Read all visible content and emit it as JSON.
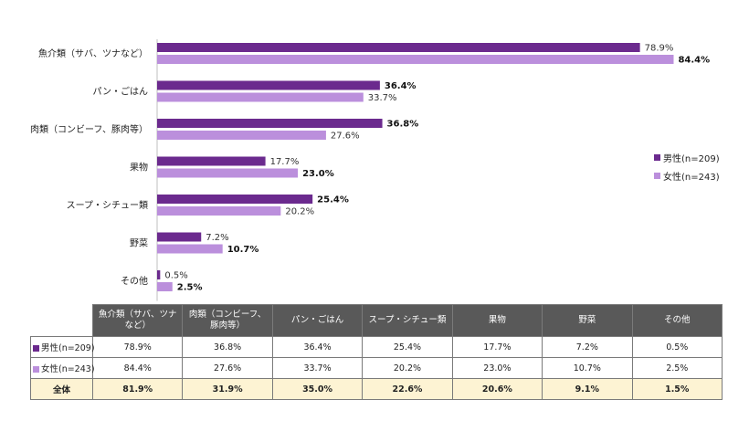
{
  "chart_data": {
    "type": "bar",
    "orientation": "horizontal",
    "categories": [
      "魚介類（サバ、ツナなど）",
      "パン・ごはん",
      "肉類（コンビーフ、豚肉等）",
      "果物",
      "スープ・シチュー類",
      "野菜",
      "その他"
    ],
    "series": [
      {
        "name": "男性(n=209)",
        "color": "#6b2a8e",
        "values": [
          78.9,
          36.4,
          36.8,
          17.7,
          25.4,
          7.2,
          0.5
        ]
      },
      {
        "name": "女性(n=243)",
        "color": "#bb8fdc",
        "values": [
          84.4,
          33.7,
          27.6,
          23.0,
          20.2,
          10.7,
          2.5
        ]
      }
    ],
    "value_labels": [
      [
        "78.9%",
        "36.4%",
        "36.8%",
        "17.7%",
        "25.4%",
        "7.2%",
        "0.5%"
      ],
      [
        "84.4%",
        "33.7%",
        "27.6%",
        "23.0%",
        "20.2%",
        "10.7%",
        "2.5%"
      ]
    ],
    "bold_value_series": [
      1,
      0,
      0,
      1,
      0,
      1,
      1
    ],
    "legend_position": "right",
    "grid": false
  },
  "table": {
    "columns": [
      "魚介類（サバ、ツナなど）",
      "肉類（コンビーフ、豚肉等）",
      "パン・ごはん",
      "スープ・シチュー類",
      "果物",
      "野菜",
      "その他"
    ],
    "rows": [
      {
        "label": "男性(n=209)",
        "color": "#6b2a8e",
        "cells": [
          "78.9%",
          "36.8%",
          "36.4%",
          "25.4%",
          "17.7%",
          "7.2%",
          "0.5%"
        ]
      },
      {
        "label": "女性(n=243)",
        "color": "#bb8fdc",
        "cells": [
          "84.4%",
          "27.6%",
          "33.7%",
          "20.2%",
          "23.0%",
          "10.7%",
          "2.5%"
        ]
      },
      {
        "label": "全体",
        "cells": [
          "81.9%",
          "31.9%",
          "35.0%",
          "22.6%",
          "20.6%",
          "9.1%",
          "1.5%"
        ]
      }
    ]
  }
}
